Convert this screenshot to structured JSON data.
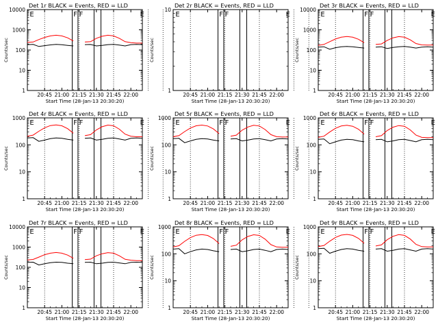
{
  "figure": {
    "y_axis_label": "Counts/sec",
    "x_axis_label": "Start Time (28-Jan-13 20:30:20)",
    "title_suffix": "BLACK = Events, RED = LLD",
    "x_tick_labels": [
      "20:45",
      "21:00",
      "21:15",
      "21:30",
      "21:45",
      "22:00"
    ],
    "y_tick_labels": [
      "1",
      "10",
      "100",
      "1000",
      "10000"
    ],
    "colors": {
      "events": "#000000",
      "lld": "#ff0000",
      "axes": "#000000",
      "background": "#ffffff"
    }
  },
  "chart_data": [
    {
      "type": "line",
      "title": "Det 1r BLACK = Events, RED = LLD",
      "detector": "Det 1r",
      "ylabel": "Counts/sec",
      "xlabel": "Start Time (28-Jan-13 20:30:20)",
      "y_scale": "log",
      "ylim": [
        1,
        10000
      ],
      "xlim": [
        "20:30",
        "22:10"
      ],
      "flare_markers": [
        "F",
        "F"
      ],
      "eclipse_markers": [
        "E",
        "E"
      ],
      "series": [
        {
          "name": "Events",
          "color": "#000000",
          "x": [
            "20:30",
            "20:35",
            "20:40",
            "20:45",
            "20:50",
            "20:55",
            "21:00",
            "21:05",
            "21:10",
            "21:15",
            "21:20",
            "21:25",
            "21:30",
            "21:35",
            "21:40",
            "21:45",
            "21:50",
            "21:55",
            "22:00",
            "22:05",
            "22:10"
          ],
          "values": [
            185,
            190,
            150,
            165,
            180,
            190,
            182,
            170,
            160,
            null,
            185,
            188,
            160,
            170,
            185,
            190,
            175,
            160,
            185,
            190,
            185
          ]
        },
        {
          "name": "LLD",
          "color": "#ff0000",
          "x": [
            "20:30",
            "20:35",
            "20:40",
            "20:45",
            "20:50",
            "20:55",
            "21:00",
            "21:05",
            "21:10",
            "21:15",
            "21:20",
            "21:25",
            "21:30",
            "21:35",
            "21:40",
            "21:45",
            "21:50",
            "21:55",
            "22:00",
            "22:05",
            "22:10"
          ],
          "values": [
            240,
            250,
            330,
            420,
            500,
            540,
            500,
            400,
            280,
            null,
            250,
            260,
            380,
            480,
            540,
            500,
            380,
            260,
            230,
            220,
            220
          ]
        }
      ]
    },
    {
      "type": "line",
      "title": "Det 2r BLACK = Events, RED = LLD",
      "detector": "Det 2r",
      "ylabel": "Counts/sec",
      "xlabel": "Start Time (28-Jan-13 20:30:20)",
      "y_scale": "log",
      "ylim": [
        1,
        10
      ],
      "xlim": [
        "20:30",
        "22:10"
      ],
      "flare_markers": [
        "F",
        "F"
      ],
      "eclipse_markers": [
        "E",
        "E"
      ],
      "series": []
    },
    {
      "type": "line",
      "title": "Det 3r BLACK = Events, RED = LLD",
      "detector": "Det 3r",
      "ylabel": "Counts/sec",
      "xlabel": "Start Time (28-Jan-13 20:30:20)",
      "y_scale": "log",
      "ylim": [
        1,
        10000
      ],
      "xlim": [
        "20:30",
        "22:10"
      ],
      "flare_markers": [
        "F",
        "F"
      ],
      "eclipse_markers": [
        "E",
        "E"
      ],
      "series": [
        {
          "name": "Events",
          "color": "#000000",
          "x": [
            "20:30",
            "20:35",
            "20:40",
            "20:45",
            "20:50",
            "20:55",
            "21:00",
            "21:05",
            "21:10",
            "21:15",
            "21:20",
            "21:25",
            "21:30",
            "21:35",
            "21:40",
            "21:45",
            "21:50",
            "21:55",
            "22:00",
            "22:05",
            "22:10"
          ],
          "values": [
            140,
            145,
            110,
            130,
            145,
            150,
            145,
            135,
            125,
            null,
            140,
            145,
            120,
            135,
            145,
            150,
            140,
            125,
            140,
            145,
            140
          ]
        },
        {
          "name": "LLD",
          "color": "#ff0000",
          "x": [
            "20:30",
            "20:35",
            "20:40",
            "20:45",
            "20:50",
            "20:55",
            "21:00",
            "21:05",
            "21:10",
            "21:15",
            "21:20",
            "21:25",
            "21:30",
            "21:35",
            "21:40",
            "21:45",
            "21:50",
            "21:55",
            "22:00",
            "22:05",
            "22:10"
          ],
          "values": [
            170,
            190,
            260,
            350,
            430,
            470,
            430,
            340,
            230,
            null,
            190,
            200,
            300,
            400,
            460,
            430,
            320,
            210,
            180,
            175,
            175
          ]
        }
      ]
    },
    {
      "type": "line",
      "title": "Det 4r BLACK = Events, RED = LLD",
      "detector": "Det 4r",
      "ylabel": "Counts/sec",
      "xlabel": "Start Time (28-Jan-13 20:30:20)",
      "y_scale": "log",
      "ylim": [
        1,
        1000
      ],
      "xlim": [
        "20:30",
        "22:10"
      ],
      "flare_markers": [
        "F",
        "F"
      ],
      "eclipse_markers": [
        "E",
        "E"
      ],
      "series": [
        {
          "name": "Events",
          "color": "#000000",
          "x": [
            "20:30",
            "20:35",
            "20:40",
            "20:45",
            "20:50",
            "20:55",
            "21:00",
            "21:05",
            "21:10",
            "21:15",
            "21:20",
            "21:25",
            "21:30",
            "21:35",
            "21:40",
            "21:45",
            "21:50",
            "21:55",
            "22:00",
            "22:05",
            "22:10"
          ],
          "values": [
            180,
            185,
            135,
            150,
            170,
            180,
            175,
            160,
            150,
            null,
            175,
            180,
            150,
            160,
            175,
            180,
            165,
            150,
            175,
            180,
            175
          ]
        },
        {
          "name": "LLD",
          "color": "#ff0000",
          "x": [
            "20:30",
            "20:35",
            "20:40",
            "20:45",
            "20:50",
            "20:55",
            "21:00",
            "21:05",
            "21:10",
            "21:15",
            "21:20",
            "21:25",
            "21:30",
            "21:35",
            "21:40",
            "21:45",
            "21:50",
            "21:55",
            "22:00",
            "22:05",
            "22:10"
          ],
          "values": [
            210,
            230,
            320,
            430,
            520,
            550,
            510,
            400,
            270,
            null,
            220,
            240,
            360,
            470,
            540,
            510,
            380,
            250,
            210,
            200,
            200
          ]
        }
      ]
    },
    {
      "type": "line",
      "title": "Det 5r BLACK = Events, RED = LLD",
      "detector": "Det 5r",
      "ylabel": "Counts/sec",
      "xlabel": "Start Time (28-Jan-13 20:30:20)",
      "y_scale": "log",
      "ylim": [
        1,
        1000
      ],
      "xlim": [
        "20:30",
        "22:10"
      ],
      "flare_markers": [
        "F",
        "F"
      ],
      "eclipse_markers": [
        "E",
        "E"
      ],
      "series": [
        {
          "name": "Events",
          "color": "#000000",
          "x": [
            "20:30",
            "20:35",
            "20:40",
            "20:45",
            "20:50",
            "20:55",
            "21:00",
            "21:05",
            "21:10",
            "21:15",
            "21:20",
            "21:25",
            "21:30",
            "21:35",
            "21:40",
            "21:45",
            "21:50",
            "21:55",
            "22:00",
            "22:05",
            "22:10"
          ],
          "values": [
            170,
            175,
            120,
            140,
            160,
            170,
            165,
            150,
            140,
            null,
            165,
            170,
            140,
            150,
            165,
            170,
            155,
            140,
            165,
            170,
            165
          ]
        },
        {
          "name": "LLD",
          "color": "#ff0000",
          "x": [
            "20:30",
            "20:35",
            "20:40",
            "20:45",
            "20:50",
            "20:55",
            "21:00",
            "21:05",
            "21:10",
            "21:15",
            "21:20",
            "21:25",
            "21:30",
            "21:35",
            "21:40",
            "21:45",
            "21:50",
            "21:55",
            "22:00",
            "22:05",
            "22:10"
          ],
          "values": [
            200,
            220,
            310,
            420,
            510,
            540,
            500,
            390,
            260,
            null,
            210,
            230,
            350,
            460,
            530,
            500,
            370,
            240,
            200,
            195,
            195
          ]
        }
      ]
    },
    {
      "type": "line",
      "title": "Det 6r BLACK = Events, RED = LLD",
      "detector": "Det 6r",
      "ylabel": "Counts/sec",
      "xlabel": "Start Time (28-Jan-13 20:30:20)",
      "y_scale": "log",
      "ylim": [
        1,
        1000
      ],
      "xlim": [
        "20:30",
        "22:10"
      ],
      "flare_markers": [
        "F",
        "F"
      ],
      "eclipse_markers": [
        "E",
        "E"
      ],
      "series": [
        {
          "name": "Events",
          "color": "#000000",
          "x": [
            "20:30",
            "20:35",
            "20:40",
            "20:45",
            "20:50",
            "20:55",
            "21:00",
            "21:05",
            "21:10",
            "21:15",
            "21:20",
            "21:25",
            "21:30",
            "21:35",
            "21:40",
            "21:45",
            "21:50",
            "21:55",
            "22:00",
            "22:05",
            "22:10"
          ],
          "values": [
            160,
            165,
            110,
            130,
            150,
            160,
            155,
            140,
            130,
            null,
            155,
            160,
            130,
            140,
            155,
            160,
            145,
            130,
            155,
            160,
            155
          ]
        },
        {
          "name": "LLD",
          "color": "#ff0000",
          "x": [
            "20:30",
            "20:35",
            "20:40",
            "20:45",
            "20:50",
            "20:55",
            "21:00",
            "21:05",
            "21:10",
            "21:15",
            "21:20",
            "21:25",
            "21:30",
            "21:35",
            "21:40",
            "21:45",
            "21:50",
            "21:55",
            "22:00",
            "22:05",
            "22:10"
          ],
          "values": [
            190,
            210,
            300,
            410,
            500,
            530,
            490,
            380,
            250,
            null,
            200,
            220,
            340,
            450,
            520,
            490,
            360,
            230,
            190,
            185,
            185
          ]
        }
      ]
    },
    {
      "type": "line",
      "title": "Det 7r BLACK = Events, RED = LLD",
      "detector": "Det 7r",
      "ylabel": "Counts/sec",
      "xlabel": "Start Time (28-Jan-13 20:30:20)",
      "y_scale": "log",
      "ylim": [
        1,
        10000
      ],
      "xlim": [
        "20:30",
        "22:10"
      ],
      "flare_markers": [
        "F",
        "F"
      ],
      "eclipse_markers": [
        "E",
        "E"
      ],
      "series": [
        {
          "name": "Events",
          "color": "#000000",
          "x": [
            "20:30",
            "20:35",
            "20:40",
            "20:45",
            "20:50",
            "20:55",
            "21:00",
            "21:05",
            "21:10",
            "21:15",
            "21:20",
            "21:25",
            "21:30",
            "21:35",
            "21:40",
            "21:45",
            "21:50",
            "21:55",
            "22:00",
            "22:05",
            "22:10"
          ],
          "values": [
            175,
            180,
            130,
            150,
            170,
            180,
            175,
            160,
            150,
            null,
            175,
            180,
            150,
            160,
            175,
            180,
            165,
            150,
            175,
            180,
            175
          ]
        },
        {
          "name": "LLD",
          "color": "#ff0000",
          "x": [
            "20:30",
            "20:35",
            "20:40",
            "20:45",
            "20:50",
            "20:55",
            "21:00",
            "21:05",
            "21:10",
            "21:15",
            "21:20",
            "21:25",
            "21:30",
            "21:35",
            "21:40",
            "21:45",
            "21:50",
            "21:55",
            "22:00",
            "22:05",
            "22:10"
          ],
          "values": [
            230,
            245,
            320,
            420,
            500,
            540,
            500,
            400,
            280,
            null,
            240,
            255,
            370,
            470,
            530,
            500,
            370,
            250,
            225,
            215,
            215
          ]
        }
      ]
    },
    {
      "type": "line",
      "title": "Det 8r BLACK = Events, RED = LLD",
      "detector": "Det 8r",
      "ylabel": "Counts/sec",
      "xlabel": "Start Time (28-Jan-13 20:30:20)",
      "y_scale": "log",
      "ylim": [
        1,
        1000
      ],
      "xlim": [
        "20:30",
        "22:10"
      ],
      "flare_markers": [
        "F",
        "F"
      ],
      "eclipse_markers": [
        "E",
        "E"
      ],
      "series": [
        {
          "name": "Events",
          "color": "#000000",
          "x": [
            "20:30",
            "20:35",
            "20:40",
            "20:45",
            "20:50",
            "20:55",
            "21:00",
            "21:05",
            "21:10",
            "21:15",
            "21:20",
            "21:25",
            "21:30",
            "21:35",
            "21:40",
            "21:45",
            "21:50",
            "21:55",
            "22:00",
            "22:05",
            "22:10"
          ],
          "values": [
            150,
            155,
            100,
            120,
            140,
            150,
            145,
            130,
            120,
            null,
            145,
            150,
            120,
            130,
            145,
            150,
            135,
            120,
            145,
            150,
            145
          ]
        },
        {
          "name": "LLD",
          "color": "#ff0000",
          "x": [
            "20:30",
            "20:35",
            "20:40",
            "20:45",
            "20:50",
            "20:55",
            "21:00",
            "21:05",
            "21:10",
            "21:15",
            "21:20",
            "21:25",
            "21:30",
            "21:35",
            "21:40",
            "21:45",
            "21:50",
            "21:55",
            "22:00",
            "22:05",
            "22:10"
          ],
          "values": [
            180,
            200,
            290,
            400,
            490,
            520,
            480,
            370,
            240,
            null,
            190,
            210,
            330,
            440,
            510,
            480,
            350,
            220,
            180,
            175,
            175
          ]
        }
      ]
    },
    {
      "type": "line",
      "title": "Det 9r BLACK = Events, RED = LLD",
      "detector": "Det 9r",
      "ylabel": "Counts/sec",
      "xlabel": "Start Time (28-Jan-13 20:30:20)",
      "y_scale": "log",
      "ylim": [
        1,
        1000
      ],
      "xlim": [
        "20:30",
        "22:10"
      ],
      "flare_markers": [
        "F",
        "F"
      ],
      "eclipse_markers": [
        "E",
        "E"
      ],
      "series": [
        {
          "name": "Events",
          "color": "#000000",
          "x": [
            "20:30",
            "20:35",
            "20:40",
            "20:45",
            "20:50",
            "20:55",
            "21:00",
            "21:05",
            "21:10",
            "21:15",
            "21:20",
            "21:25",
            "21:30",
            "21:35",
            "21:40",
            "21:45",
            "21:50",
            "21:55",
            "22:00",
            "22:05",
            "22:10"
          ],
          "values": [
            155,
            160,
            105,
            125,
            145,
            155,
            150,
            135,
            125,
            null,
            150,
            155,
            125,
            135,
            150,
            155,
            140,
            125,
            150,
            155,
            150
          ]
        },
        {
          "name": "LLD",
          "color": "#ff0000",
          "x": [
            "20:30",
            "20:35",
            "20:40",
            "20:45",
            "20:50",
            "20:55",
            "21:00",
            "21:05",
            "21:10",
            "21:15",
            "21:20",
            "21:25",
            "21:30",
            "21:35",
            "21:40",
            "21:45",
            "21:50",
            "21:55",
            "22:00",
            "22:05",
            "22:10"
          ],
          "values": [
            185,
            205,
            295,
            405,
            495,
            525,
            485,
            375,
            245,
            null,
            195,
            215,
            335,
            445,
            515,
            485,
            355,
            225,
            185,
            180,
            180
          ]
        }
      ]
    }
  ]
}
